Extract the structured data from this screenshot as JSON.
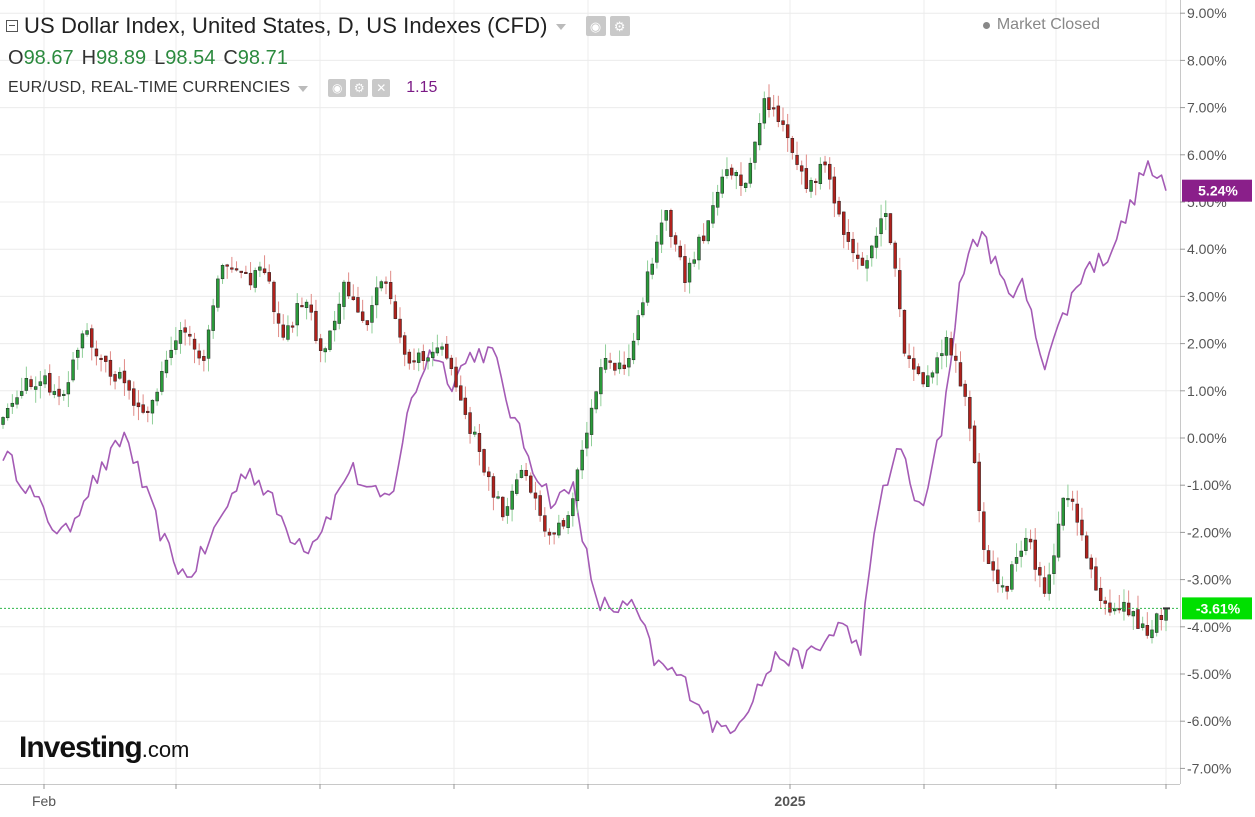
{
  "header": {
    "title": "US Dollar Index, United States, D, US Indexes (CFD)",
    "status": "Market Closed",
    "ohlc": [
      {
        "key": "O",
        "value": "98.67"
      },
      {
        "key": "H",
        "value": "98.89"
      },
      {
        "key": "L",
        "value": "98.54"
      },
      {
        "key": "C",
        "value": "98.71"
      }
    ]
  },
  "secondary": {
    "title": "EUR/USD, REAL-TIME CURRENCIES",
    "value": "1.15",
    "color": "#9c4fb0"
  },
  "logo": {
    "main": "Investing",
    "domain": ".com"
  },
  "colors": {
    "up": "#2a9a3a",
    "down": "#b0211c",
    "compare_line": "#a45bb5",
    "last_label_bg": "#00e000",
    "secondary_label_bg": "#8a1f8a"
  },
  "icons": [
    "collapse-icon",
    "eye-icon",
    "gear-icon",
    "close-icon",
    "caret-down-icon",
    "status-dot-icon"
  ],
  "chart_data": {
    "type": "candlestick",
    "y_scale": "percent",
    "ylim": [
      -7.3,
      9.2
    ],
    "y_ticks": [
      "9.00%",
      "8.00%",
      "7.00%",
      "6.00%",
      "5.00%",
      "4.00%",
      "3.00%",
      "2.00%",
      "1.00%",
      "0.00%",
      "-1.00%",
      "-2.00%",
      "-3.00%",
      "-4.00%",
      "-5.00%",
      "-6.00%",
      "-7.00%"
    ],
    "x_labels": [
      "Feb",
      "2025"
    ],
    "last_value_label": "-3.61%",
    "last_value": -3.61,
    "secondary_value_label": "5.24%",
    "secondary_last_value": 5.24,
    "grid": true,
    "series": [
      {
        "name": "US Dollar Index",
        "kind": "candles",
        "anchors": [
          0.4,
          1.2,
          1.3,
          0.8,
          2.3,
          1.6,
          1.2,
          0.5,
          1.4,
          2.4,
          1.7,
          3.8,
          3.3,
          3.6,
          2.1,
          3.0,
          1.7,
          3.2,
          2.3,
          3.6,
          1.6,
          1.8,
          1.9,
          0.6,
          -0.6,
          -1.7,
          -0.6,
          -1.9,
          -2.0,
          0.0,
          1.8,
          1.4,
          3.1,
          4.9,
          3.4,
          4.4,
          5.8,
          5.2,
          7.2,
          6.4,
          5.3,
          5.8,
          4.1,
          3.7,
          5.0,
          1.8,
          1.2,
          2.1,
          1.0,
          -2.5,
          -3.2,
          -2.0,
          -3.5,
          -1.0,
          -2.5,
          -3.7,
          -3.5,
          -4.2,
          -3.61
        ]
      },
      {
        "name": "EUR/USD",
        "kind": "line",
        "anchors": [
          -0.3,
          -0.9,
          -1.6,
          -2.1,
          -1.2,
          -0.6,
          0.1,
          -1.2,
          -2.3,
          -3.0,
          -2.3,
          -1.4,
          -0.6,
          -1.2,
          -2.0,
          -2.3,
          -1.6,
          -0.6,
          -1.2,
          -1.3,
          0.8,
          1.9,
          1.2,
          1.8,
          1.8,
          0.4,
          -0.6,
          -1.4,
          -1.0,
          -3.5,
          -3.6,
          -3.6,
          -4.8,
          -5.0,
          -5.5,
          -6.2,
          -6.0,
          -5.3,
          -4.6,
          -4.7,
          -4.5,
          -3.9,
          -4.5,
          -1.2,
          -0.2,
          -1.7,
          0.2,
          3.6,
          4.4,
          3.2,
          3.2,
          1.6,
          2.6,
          3.6,
          3.8,
          4.6,
          5.8,
          5.24
        ]
      }
    ]
  }
}
